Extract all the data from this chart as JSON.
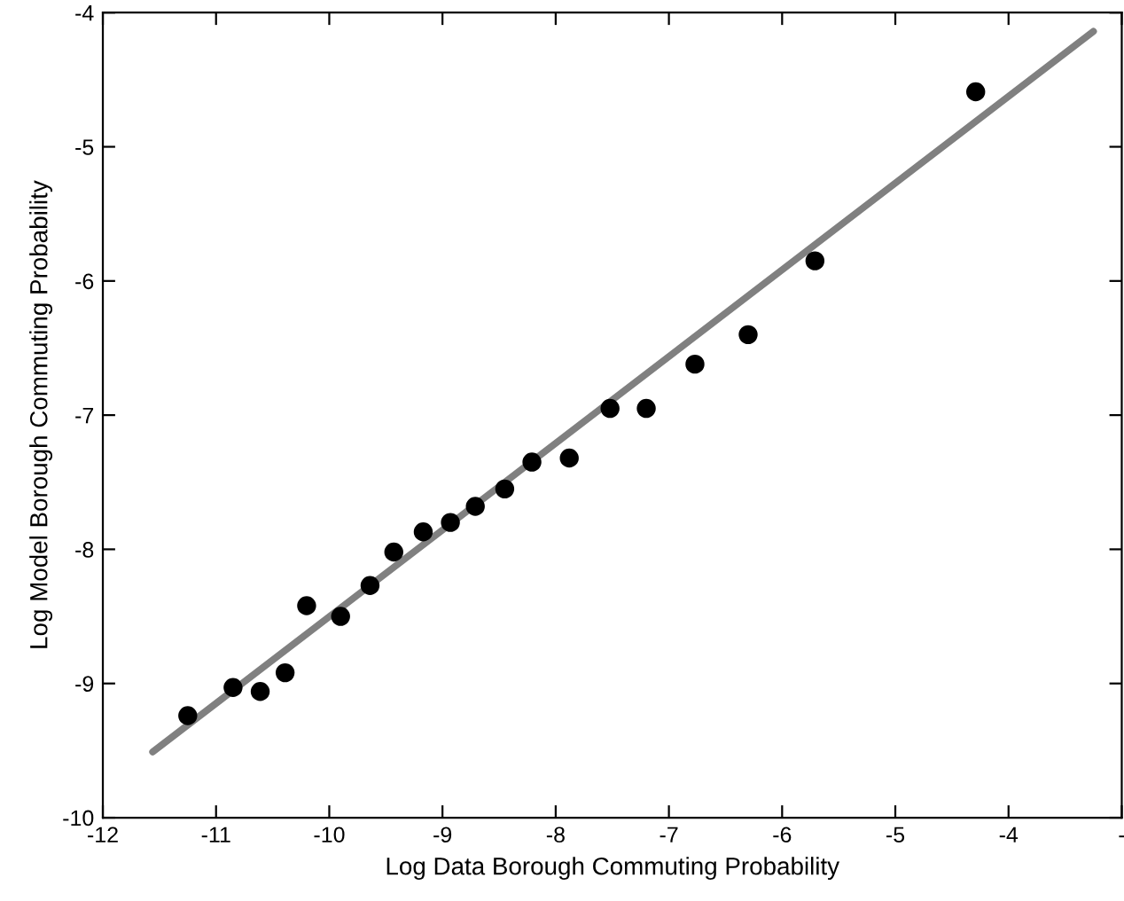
{
  "chart_data": {
    "type": "scatter",
    "xlabel": "Log Data Borough Commuting Probability",
    "ylabel": "Log Model Borough Commuting Probability",
    "xlim": [
      -12,
      -3
    ],
    "ylim": [
      -10,
      -4
    ],
    "xticks": [
      -12,
      -11,
      -10,
      -9,
      -8,
      -7,
      -6,
      -5,
      -4,
      {
        "value": -3,
        "label": "-"
      }
    ],
    "yticks": [
      -10,
      -9,
      -8,
      -7,
      -6,
      -5,
      -4
    ],
    "grid": false,
    "legend": false,
    "marker": "circle",
    "series": [
      {
        "color": "#000000",
        "x": [
          -11.25,
          -10.85,
          -10.61,
          -10.39,
          -10.2,
          -9.9,
          -9.64,
          -9.43,
          -9.17,
          -8.93,
          -8.71,
          -8.45,
          -8.21,
          -7.88,
          -7.52,
          -7.2,
          -6.77,
          -6.3,
          -5.71,
          -4.29
        ],
        "values": [
          -9.24,
          -9.03,
          -9.06,
          -8.92,
          -8.42,
          -8.5,
          -8.27,
          -8.02,
          -7.87,
          -7.8,
          -7.68,
          -7.55,
          -7.35,
          -7.32,
          -6.95,
          -6.95,
          -6.62,
          -6.4,
          -5.85,
          -4.59
        ]
      },
      {
        "type": "line",
        "color": "#808080",
        "marker": "none",
        "line_style": "solid",
        "x": [
          -11.56,
          -3.25
        ],
        "values": [
          -9.51,
          -4.14
        ]
      }
    ]
  }
}
